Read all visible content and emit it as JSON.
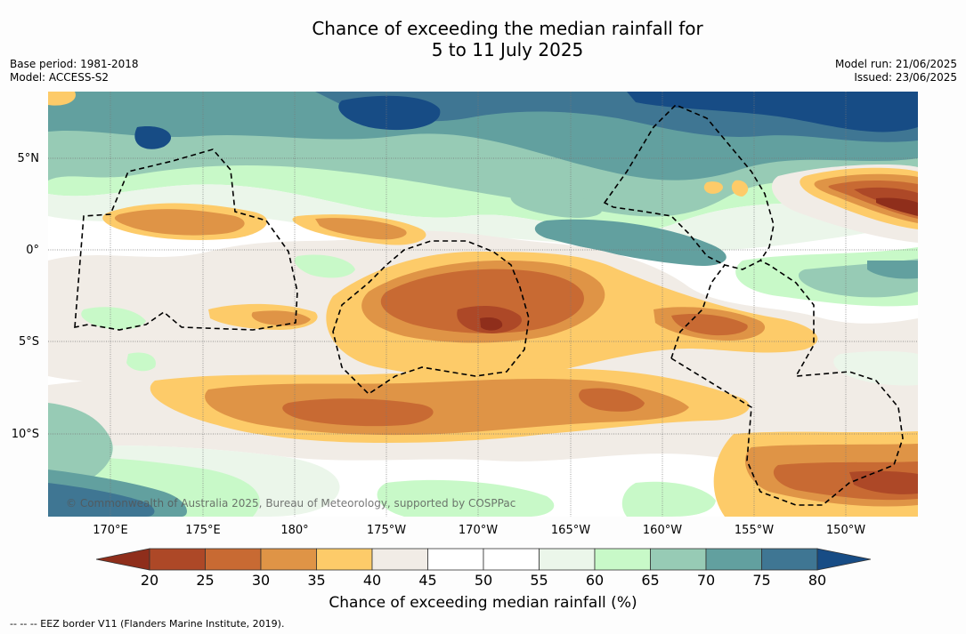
{
  "title": {
    "line1": "Chance of exceeding the median rainfall for",
    "line2": "5 to 11 July 2025"
  },
  "meta": {
    "base_period": "Base period: 1981-2018",
    "model": "Model: ACCESS-S2",
    "model_run": "Model run: 21/06/2025",
    "issued": "Issued: 23/06/2025"
  },
  "map": {
    "copyright": "© Commonwealth of Australia 2025, Bureau of Meteorology, supported by COSPPac",
    "lat_labels": [
      "5°N",
      "0°",
      "5°S",
      "10°S"
    ],
    "lon_labels": [
      "170°E",
      "175°E",
      "180°",
      "175°W",
      "170°W",
      "165°W",
      "160°W",
      "155°W",
      "150°W"
    ],
    "colors": {
      "below20": "#8f2e1b",
      "c20_25": "#ad4827",
      "c25_30": "#c86a33",
      "c30_35": "#df9446",
      "c35_40": "#fdcb69",
      "c40_45": "#f1ece6",
      "c45_55": "#ffffff",
      "c55_60": "#ebf6ea",
      "c60_65": "#c8f9c8",
      "c65_70": "#97cbb5",
      "c70_75": "#62a09f",
      "c75_80": "#3f7693",
      "above80": "#174c85"
    }
  },
  "colorbar": {
    "ticks": [
      "20",
      "25",
      "30",
      "35",
      "40",
      "45",
      "50",
      "55",
      "60",
      "65",
      "70",
      "75",
      "80"
    ],
    "colors": [
      "#ad4827",
      "#c86a33",
      "#df9446",
      "#fdcb69",
      "#f1ece6",
      "#ffffff",
      "#ffffff",
      "#ebf6ea",
      "#c8f9c8",
      "#97cbb5",
      "#62a09f",
      "#3f7693"
    ],
    "under_color": "#8f2e1b",
    "over_color": "#174c85",
    "title": "Chance of exceeding median rainfall (%)"
  },
  "footer": {
    "eez": "--  --  -- EEZ border V11 (Flanders Marine Institute, 2019)."
  }
}
